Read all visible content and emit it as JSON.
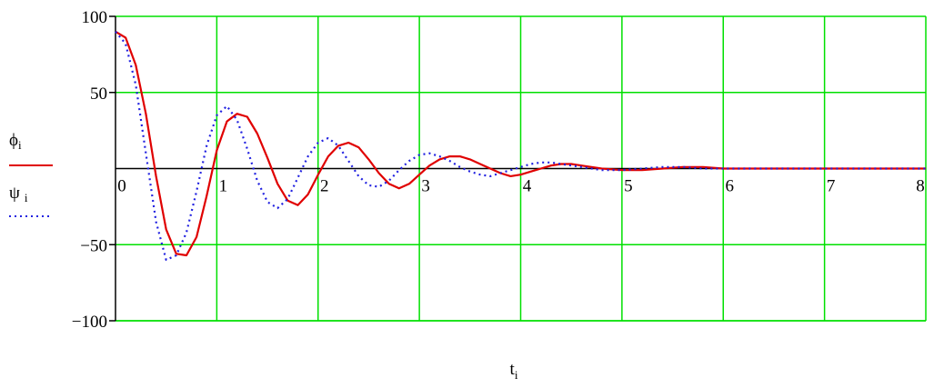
{
  "chart_data": {
    "type": "line",
    "xlabel": "t",
    "xlabel_sub": "i",
    "xlim": [
      0,
      8
    ],
    "ylim": [
      -100,
      100
    ],
    "xticks": [
      0,
      1,
      2,
      3,
      4,
      5,
      6,
      7,
      8
    ],
    "yticks": [
      -100,
      -50,
      50,
      100
    ],
    "ytick_labels": [
      "−100",
      "−50",
      "50",
      "100"
    ],
    "grid": true,
    "grid_color": "#00e000",
    "legend_position": "left",
    "series": [
      {
        "name": "ϕ",
        "name_sub": "i",
        "color": "#e00000",
        "style": "solid",
        "points": [
          [
            0,
            90
          ],
          [
            0.1,
            86
          ],
          [
            0.2,
            68
          ],
          [
            0.3,
            36
          ],
          [
            0.4,
            -5
          ],
          [
            0.5,
            -40
          ],
          [
            0.6,
            -56
          ],
          [
            0.7,
            -57
          ],
          [
            0.8,
            -45
          ],
          [
            0.9,
            -18
          ],
          [
            1.0,
            12
          ],
          [
            1.1,
            31
          ],
          [
            1.2,
            36
          ],
          [
            1.3,
            34
          ],
          [
            1.4,
            23
          ],
          [
            1.5,
            7
          ],
          [
            1.6,
            -10
          ],
          [
            1.7,
            -21
          ],
          [
            1.8,
            -24
          ],
          [
            1.9,
            -17
          ],
          [
            2.0,
            -4
          ],
          [
            2.1,
            8
          ],
          [
            2.2,
            15
          ],
          [
            2.3,
            17
          ],
          [
            2.4,
            14
          ],
          [
            2.5,
            6
          ],
          [
            2.6,
            -3
          ],
          [
            2.7,
            -10
          ],
          [
            2.8,
            -13
          ],
          [
            2.9,
            -10
          ],
          [
            3.0,
            -4
          ],
          [
            3.1,
            2
          ],
          [
            3.2,
            6
          ],
          [
            3.3,
            8
          ],
          [
            3.4,
            8
          ],
          [
            3.5,
            6
          ],
          [
            3.6,
            3
          ],
          [
            3.7,
            0
          ],
          [
            3.8,
            -3
          ],
          [
            3.9,
            -5
          ],
          [
            4.0,
            -4
          ],
          [
            4.1,
            -2
          ],
          [
            4.2,
            0
          ],
          [
            4.3,
            2
          ],
          [
            4.4,
            3
          ],
          [
            4.5,
            3
          ],
          [
            4.6,
            2
          ],
          [
            4.8,
            0
          ],
          [
            5.0,
            -1
          ],
          [
            5.2,
            -1
          ],
          [
            5.4,
            0
          ],
          [
            5.6,
            1
          ],
          [
            5.8,
            1
          ],
          [
            6.0,
            0
          ],
          [
            6.5,
            0
          ],
          [
            7.0,
            0
          ],
          [
            7.5,
            0
          ],
          [
            8.0,
            0
          ]
        ]
      },
      {
        "name": "ψ",
        "name_sub": "i",
        "color": "#2020e0",
        "style": "dotted",
        "points": [
          [
            0,
            90
          ],
          [
            0.1,
            82
          ],
          [
            0.2,
            55
          ],
          [
            0.3,
            10
          ],
          [
            0.4,
            -35
          ],
          [
            0.5,
            -60
          ],
          [
            0.6,
            -57
          ],
          [
            0.7,
            -42
          ],
          [
            0.8,
            -15
          ],
          [
            0.9,
            15
          ],
          [
            1.0,
            35
          ],
          [
            1.1,
            41
          ],
          [
            1.2,
            32
          ],
          [
            1.3,
            13
          ],
          [
            1.4,
            -8
          ],
          [
            1.5,
            -22
          ],
          [
            1.6,
            -26
          ],
          [
            1.7,
            -20
          ],
          [
            1.8,
            -6
          ],
          [
            1.9,
            8
          ],
          [
            2.0,
            17
          ],
          [
            2.1,
            20
          ],
          [
            2.2,
            15
          ],
          [
            2.3,
            5
          ],
          [
            2.4,
            -5
          ],
          [
            2.5,
            -11
          ],
          [
            2.6,
            -12
          ],
          [
            2.7,
            -8
          ],
          [
            2.8,
            -1
          ],
          [
            2.9,
            5
          ],
          [
            3.0,
            9
          ],
          [
            3.1,
            10
          ],
          [
            3.2,
            8
          ],
          [
            3.3,
            5
          ],
          [
            3.4,
            1
          ],
          [
            3.5,
            -2
          ],
          [
            3.6,
            -4
          ],
          [
            3.7,
            -5
          ],
          [
            3.8,
            -3
          ],
          [
            3.9,
            -1
          ],
          [
            4.0,
            1
          ],
          [
            4.1,
            3
          ],
          [
            4.2,
            4
          ],
          [
            4.3,
            4
          ],
          [
            4.4,
            3
          ],
          [
            4.6,
            1
          ],
          [
            4.8,
            -1
          ],
          [
            5.0,
            -1
          ],
          [
            5.2,
            0
          ],
          [
            5.4,
            1
          ],
          [
            5.6,
            1
          ],
          [
            5.8,
            0
          ],
          [
            6.0,
            0
          ],
          [
            6.5,
            0
          ],
          [
            7.0,
            0
          ],
          [
            7.5,
            0
          ],
          [
            8.0,
            0
          ]
        ]
      }
    ]
  }
}
